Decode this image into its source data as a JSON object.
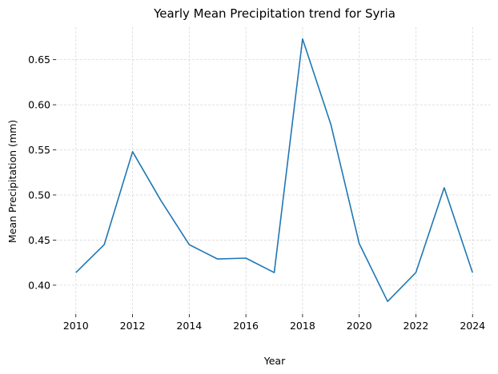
{
  "chart_data": {
    "type": "line",
    "title": "Yearly Mean Precipitation trend for Syria",
    "xlabel": "Year",
    "ylabel": "Mean Precipitation (mm)",
    "x_ticks": [
      2010,
      2012,
      2014,
      2016,
      2018,
      2020,
      2022,
      2024
    ],
    "y_ticks": [
      "0.40",
      "0.45",
      "0.50",
      "0.55",
      "0.60",
      "0.65"
    ],
    "xlim": [
      2009.3,
      2024.7
    ],
    "ylim": [
      0.368,
      0.686
    ],
    "grid": true,
    "series": [
      {
        "color": "#1f77b4",
        "x": [
          2010,
          2011,
          2012,
          2013,
          2014,
          2015,
          2016,
          2017,
          2018,
          2019,
          2020,
          2021,
          2022,
          2023,
          2024
        ],
        "values": [
          0.414,
          0.445,
          0.548,
          0.494,
          0.445,
          0.429,
          0.43,
          0.414,
          0.673,
          0.578,
          0.446,
          0.382,
          0.414,
          0.508,
          0.414
        ]
      }
    ]
  }
}
